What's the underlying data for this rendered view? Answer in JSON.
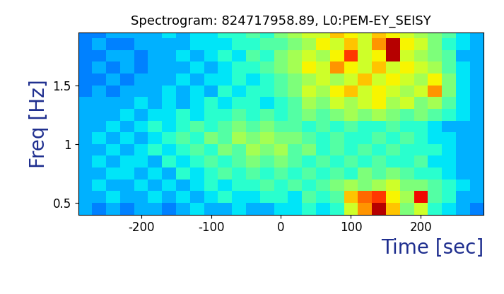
{
  "chart_data": {
    "type": "heatmap",
    "title": "Spectrogram: 824717958.89, L0:PEM-EY_SEISY",
    "x_label": "Time [sec]",
    "y_label": "Freq [Hz]",
    "xlim": [
      -290,
      290
    ],
    "ylim": [
      0.4,
      1.95
    ],
    "xticks": [
      -200,
      -100,
      0,
      100,
      200
    ],
    "yticks": [
      0.5,
      1,
      1.5
    ],
    "x_edges": [
      -290,
      -270,
      -250,
      -230,
      -210,
      -190,
      -170,
      -150,
      -130,
      -110,
      -90,
      -70,
      -50,
      -30,
      -10,
      10,
      30,
      50,
      70,
      90,
      110,
      130,
      150,
      170,
      190,
      210,
      230,
      250,
      270,
      290
    ],
    "y_edges": [
      0.4,
      0.5,
      0.6,
      0.7,
      0.8,
      0.9,
      1.0,
      1.1,
      1.2,
      1.3,
      1.4,
      1.5,
      1.6,
      1.7,
      1.8,
      1.9,
      2.0
    ],
    "cell_range": [
      0,
      1
    ],
    "cells": [
      [
        0.3,
        0.25,
        0.3,
        0.25,
        0.3,
        0.3,
        0.25,
        0.3,
        0.35,
        0.3,
        0.3,
        0.35,
        0.3,
        0.3,
        0.35,
        0.35,
        0.4,
        0.35,
        0.4,
        0.6,
        0.75,
        0.95,
        0.7,
        0.5,
        0.6,
        0.4,
        0.35,
        0.3,
        0.25
      ],
      [
        0.3,
        0.3,
        0.35,
        0.3,
        0.3,
        0.35,
        0.3,
        0.35,
        0.3,
        0.35,
        0.4,
        0.35,
        0.35,
        0.4,
        0.4,
        0.35,
        0.45,
        0.4,
        0.45,
        0.7,
        0.8,
        0.85,
        0.65,
        0.55,
        0.9,
        0.45,
        0.4,
        0.3,
        0.3
      ],
      [
        0.3,
        0.35,
        0.3,
        0.3,
        0.35,
        0.3,
        0.35,
        0.3,
        0.35,
        0.4,
        0.35,
        0.4,
        0.4,
        0.45,
        0.4,
        0.45,
        0.4,
        0.45,
        0.5,
        0.55,
        0.5,
        0.55,
        0.6,
        0.5,
        0.5,
        0.45,
        0.4,
        0.35,
        0.3
      ],
      [
        0.3,
        0.3,
        0.35,
        0.35,
        0.3,
        0.35,
        0.3,
        0.4,
        0.35,
        0.4,
        0.45,
        0.4,
        0.45,
        0.4,
        0.45,
        0.4,
        0.45,
        0.4,
        0.45,
        0.4,
        0.5,
        0.45,
        0.5,
        0.45,
        0.4,
        0.4,
        0.35,
        0.3,
        0.3
      ],
      [
        0.3,
        0.35,
        0.3,
        0.35,
        0.35,
        0.3,
        0.4,
        0.35,
        0.4,
        0.45,
        0.4,
        0.45,
        0.5,
        0.45,
        0.5,
        0.45,
        0.4,
        0.45,
        0.4,
        0.45,
        0.4,
        0.45,
        0.4,
        0.4,
        0.45,
        0.35,
        0.35,
        0.3,
        0.3
      ],
      [
        0.3,
        0.3,
        0.35,
        0.3,
        0.35,
        0.4,
        0.35,
        0.4,
        0.45,
        0.4,
        0.5,
        0.45,
        0.55,
        0.5,
        0.55,
        0.45,
        0.5,
        0.4,
        0.45,
        0.4,
        0.45,
        0.4,
        0.45,
        0.4,
        0.4,
        0.4,
        0.35,
        0.3,
        0.3
      ],
      [
        0.3,
        0.35,
        0.3,
        0.35,
        0.3,
        0.35,
        0.4,
        0.45,
        0.4,
        0.5,
        0.45,
        0.55,
        0.5,
        0.55,
        0.5,
        0.5,
        0.45,
        0.4,
        0.45,
        0.4,
        0.4,
        0.45,
        0.4,
        0.45,
        0.4,
        0.35,
        0.35,
        0.3,
        0.3
      ],
      [
        0.3,
        0.3,
        0.35,
        0.3,
        0.35,
        0.4,
        0.35,
        0.4,
        0.45,
        0.4,
        0.45,
        0.5,
        0.45,
        0.5,
        0.45,
        0.45,
        0.4,
        0.45,
        0.4,
        0.45,
        0.4,
        0.4,
        0.45,
        0.4,
        0.4,
        0.35,
        0.3,
        0.3,
        0.3
      ],
      [
        0.3,
        0.3,
        0.3,
        0.35,
        0.3,
        0.35,
        0.35,
        0.4,
        0.35,
        0.4,
        0.4,
        0.45,
        0.4,
        0.45,
        0.4,
        0.45,
        0.5,
        0.45,
        0.5,
        0.55,
        0.5,
        0.55,
        0.5,
        0.45,
        0.5,
        0.45,
        0.4,
        0.35,
        0.3
      ],
      [
        0.3,
        0.3,
        0.3,
        0.3,
        0.35,
        0.3,
        0.35,
        0.3,
        0.35,
        0.4,
        0.35,
        0.4,
        0.4,
        0.35,
        0.4,
        0.45,
        0.55,
        0.5,
        0.6,
        0.55,
        0.6,
        0.65,
        0.55,
        0.6,
        0.5,
        0.55,
        0.45,
        0.35,
        0.3
      ],
      [
        0.25,
        0.3,
        0.25,
        0.3,
        0.3,
        0.3,
        0.35,
        0.3,
        0.35,
        0.3,
        0.4,
        0.35,
        0.4,
        0.4,
        0.45,
        0.5,
        0.6,
        0.55,
        0.65,
        0.7,
        0.6,
        0.65,
        0.6,
        0.55,
        0.6,
        0.75,
        0.5,
        0.35,
        0.3
      ],
      [
        0.25,
        0.25,
        0.3,
        0.25,
        0.3,
        0.3,
        0.3,
        0.35,
        0.3,
        0.35,
        0.35,
        0.4,
        0.35,
        0.4,
        0.45,
        0.5,
        0.55,
        0.6,
        0.55,
        0.6,
        0.7,
        0.6,
        0.65,
        0.6,
        0.55,
        0.65,
        0.5,
        0.35,
        0.3
      ],
      [
        0.25,
        0.3,
        0.25,
        0.3,
        0.25,
        0.3,
        0.3,
        0.3,
        0.35,
        0.3,
        0.35,
        0.4,
        0.4,
        0.45,
        0.5,
        0.55,
        0.65,
        0.6,
        0.75,
        0.65,
        0.6,
        0.7,
        0.6,
        0.65,
        0.6,
        0.55,
        0.45,
        0.35,
        0.3
      ],
      [
        0.25,
        0.25,
        0.3,
        0.3,
        0.25,
        0.3,
        0.3,
        0.35,
        0.3,
        0.35,
        0.4,
        0.35,
        0.45,
        0.4,
        0.5,
        0.55,
        0.6,
        0.55,
        0.65,
        0.85,
        0.6,
        0.65,
        0.95,
        0.6,
        0.55,
        0.5,
        0.45,
        0.3,
        0.3
      ],
      [
        0.25,
        0.3,
        0.25,
        0.25,
        0.3,
        0.3,
        0.3,
        0.3,
        0.35,
        0.35,
        0.35,
        0.4,
        0.4,
        0.45,
        0.45,
        0.5,
        0.55,
        0.65,
        0.6,
        0.7,
        0.6,
        0.75,
        0.95,
        0.65,
        0.6,
        0.5,
        0.4,
        0.35,
        0.3
      ],
      [
        0.25,
        0.25,
        0.3,
        0.3,
        0.3,
        0.3,
        0.35,
        0.3,
        0.35,
        0.35,
        0.4,
        0.4,
        0.45,
        0.4,
        0.5,
        0.55,
        0.6,
        0.6,
        0.7,
        0.65,
        0.6,
        0.7,
        0.65,
        0.6,
        0.55,
        0.5,
        0.45,
        0.35,
        0.3
      ]
    ]
  }
}
